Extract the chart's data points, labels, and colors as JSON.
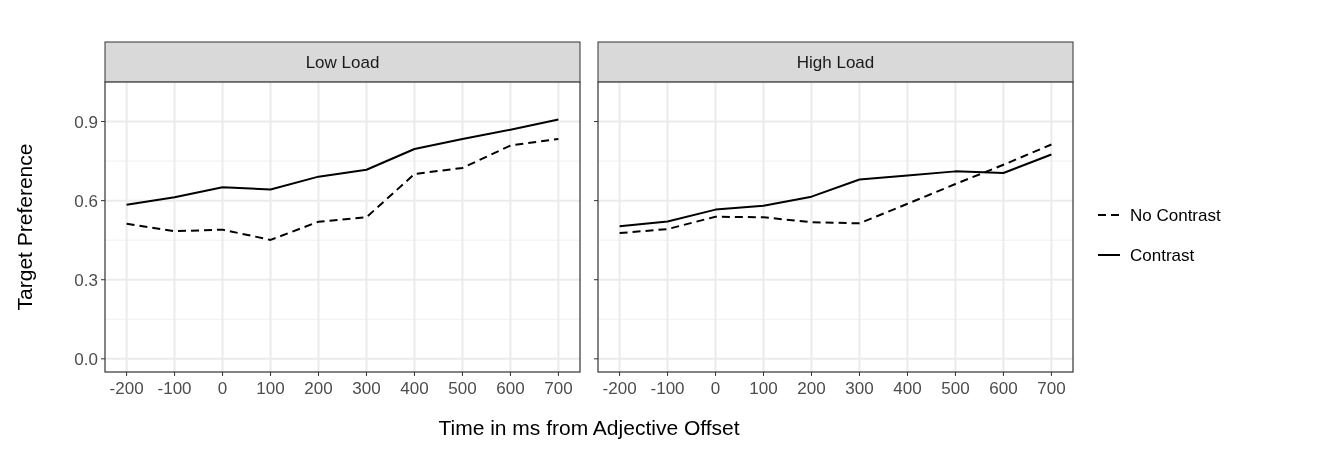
{
  "chart_data": [
    {
      "type": "line",
      "title": "Low Load",
      "xlabel": "Time in ms from Adjective Offset",
      "ylabel": "Target Preference",
      "x": [
        -200,
        -100,
        0,
        100,
        200,
        300,
        400,
        500,
        600,
        700
      ],
      "xlim": [
        -245,
        745
      ],
      "xticks": [
        -200,
        -100,
        0,
        100,
        200,
        300,
        400,
        500,
        600,
        700
      ],
      "ylim": [
        -0.05,
        1.05
      ],
      "yticks": [
        {
          "value": 0,
          "label": "0.0"
        },
        0.3,
        0.6,
        0.9
      ],
      "grid": true,
      "series": [
        {
          "color": "#000000",
          "line_style": "dashed",
          "values": [
            0.512,
            0.484,
            0.49,
            0.451,
            0.52,
            0.537,
            0.701,
            0.724,
            0.809,
            0.834
          ]
        },
        {
          "color": "#000000",
          "line_style": "solid",
          "values": [
            0.584,
            0.613,
            0.651,
            0.642,
            0.691,
            0.717,
            0.796,
            0.834,
            0.869,
            0.908
          ]
        }
      ]
    },
    {
      "type": "line",
      "title": "High Load",
      "x": [
        -200,
        -100,
        0,
        100,
        200,
        300,
        400,
        500,
        600,
        700
      ],
      "xlim": [
        -245,
        745
      ],
      "xticks": [
        -200,
        -100,
        0,
        100,
        200,
        300,
        400,
        500,
        600,
        700
      ],
      "ylim": [
        -0.05,
        1.05
      ],
      "yticks": [
        0,
        0.3,
        0.6,
        0.9
      ],
      "grid": true,
      "legend": "right",
      "tick_labels": "x",
      "series": [
        {
          "name": "No Contrast",
          "color": "#000000",
          "line_style": "dashed",
          "values": [
            0.477,
            0.492,
            0.539,
            0.537,
            0.518,
            0.514,
            0.588,
            0.663,
            0.736,
            0.813
          ]
        },
        {
          "name": "Contrast",
          "color": "#000000",
          "line_style": "solid",
          "values": [
            0.503,
            0.521,
            0.566,
            0.581,
            0.615,
            0.68,
            0.695,
            0.711,
            0.705,
            0.775
          ]
        }
      ]
    }
  ]
}
